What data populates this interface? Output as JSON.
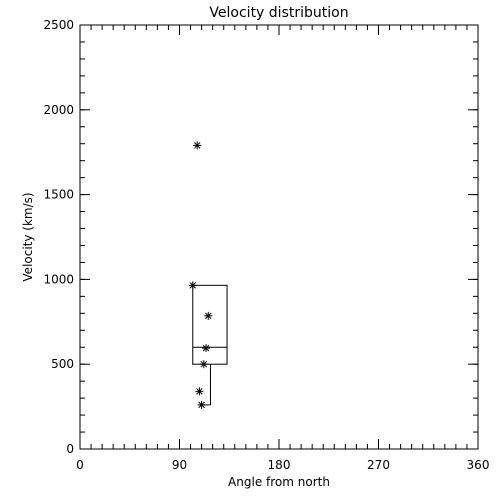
{
  "chart_data": {
    "type": "scatter",
    "title": "Velocity distribution",
    "xlabel": "Angle from north",
    "ylabel": "Velocity (km/s)",
    "xlim": [
      0,
      360
    ],
    "ylim": [
      0,
      2500
    ],
    "xticks": [
      0,
      90,
      180,
      270,
      360
    ],
    "xtick_labels": [
      "0",
      "90",
      "180",
      "270",
      "360"
    ],
    "yticks": [
      0,
      500,
      1000,
      1500,
      2000,
      2500
    ],
    "ytick_labels": [
      "0",
      "500",
      "1000",
      "1500",
      "2000",
      "2500"
    ],
    "x_minor_step": 10,
    "y_minor_step": 100,
    "grid": false,
    "marker": "asterisk",
    "points": [
      {
        "x": 106,
        "y": 1790
      },
      {
        "x": 102,
        "y": 965
      },
      {
        "x": 116,
        "y": 785
      },
      {
        "x": 114,
        "y": 595
      },
      {
        "x": 112,
        "y": 500
      },
      {
        "x": 108,
        "y": 340
      },
      {
        "x": 110,
        "y": 260
      }
    ],
    "box": {
      "x_left": 102,
      "x_right": 133,
      "x_whisker": 118,
      "lower": 500,
      "median": 600,
      "upper": 965,
      "whisker_low": 260
    }
  }
}
